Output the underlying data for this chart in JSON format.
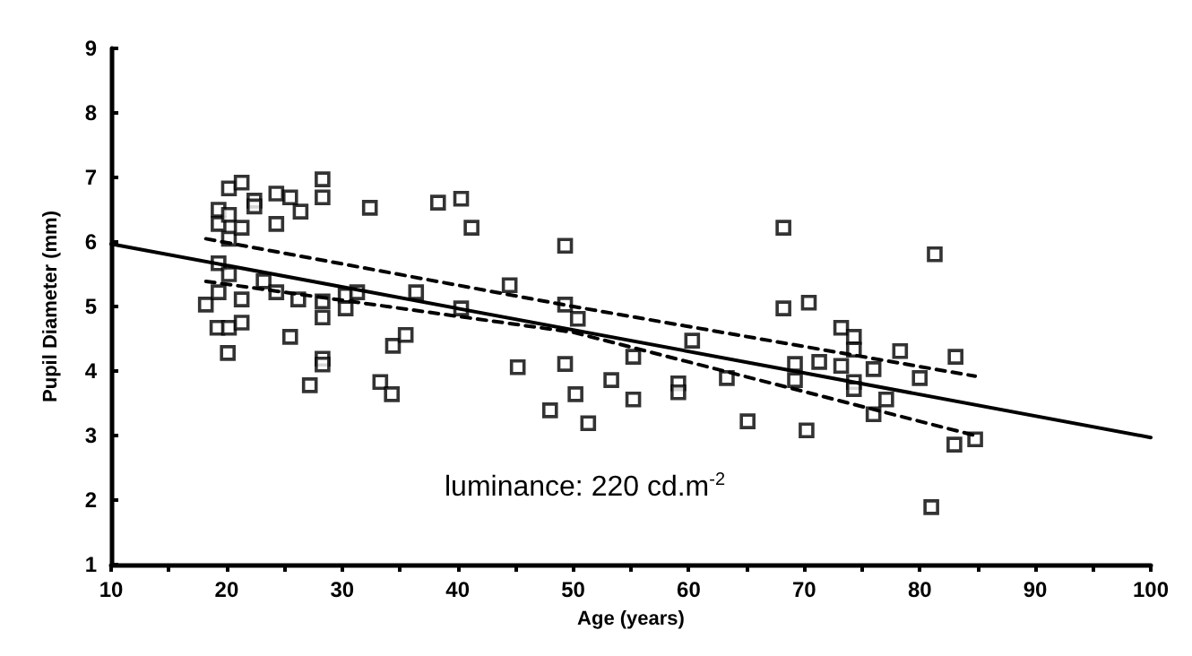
{
  "chart_data": {
    "type": "scatter",
    "xlabel": "Age (years)",
    "ylabel": "Pupil Diameter (mm)",
    "annotations": [
      "luminance: 220 cd.m$^{-2}$"
    ],
    "xlim": [
      10,
      100
    ],
    "ylim": [
      1,
      9
    ],
    "xticks": [
      10,
      {
        "value": 15,
        "label": null
      },
      20,
      {
        "value": 25,
        "label": null
      },
      30,
      {
        "value": 35,
        "label": null
      },
      40,
      {
        "value": 45,
        "label": null
      },
      50,
      {
        "value": 55,
        "label": null
      },
      60,
      {
        "value": 65,
        "label": null
      },
      70,
      {
        "value": 75,
        "label": null
      },
      80,
      {
        "value": 85,
        "label": null
      },
      90,
      {
        "value": 95,
        "label": null
      },
      100
    ],
    "yticks": [
      1,
      2,
      3,
      4,
      5,
      6,
      7,
      8,
      9
    ],
    "grid": false,
    "marker": "square",
    "series": [
      {
        "color": "#000000",
        "x": [
          18.2,
          19.3,
          19.3,
          19.3,
          19.3,
          19.2,
          20.1,
          20.2,
          20.2,
          20.2,
          20.2,
          20.2,
          21.3,
          21.3,
          21.3,
          21.3,
          22.4,
          22.4,
          23.2,
          24.3,
          24.3,
          24.3,
          25.5,
          25.5,
          26.4,
          26.2,
          27.2,
          28.3,
          28.3,
          28.3,
          28.3,
          28.3,
          28.3,
          30.3,
          30.3,
          31.3,
          32.4,
          33.3,
          34.3,
          34.4,
          35.5,
          36.4,
          38.3,
          40.3,
          41.2,
          40.3,
          44.5,
          45.2,
          49.3,
          49.3,
          50.4,
          49.3,
          48.0,
          50.2,
          51.3,
          53.3,
          55.2,
          55.2,
          59.1,
          59.1,
          60.3,
          63.3,
          65.1,
          68.2,
          68.2,
          69.2,
          69.2,
          70.4,
          70.2,
          71.3,
          73.2,
          73.2,
          74.3,
          74.3,
          74.3,
          74.3,
          76.0,
          76.0,
          77.1,
          78.3,
          80.0,
          81.3,
          81.0,
          83.1,
          83.0,
          84.8
        ],
        "values": [
          5.03,
          6.5,
          6.28,
          5.67,
          5.22,
          4.67,
          4.28,
          6.83,
          6.42,
          6.05,
          5.5,
          4.67,
          6.92,
          6.22,
          5.11,
          4.75,
          6.64,
          6.55,
          5.39,
          6.75,
          6.28,
          5.22,
          6.69,
          4.53,
          6.47,
          5.11,
          3.78,
          6.97,
          6.69,
          5.08,
          4.83,
          4.19,
          4.1,
          5.17,
          4.97,
          5.22,
          6.53,
          3.83,
          3.64,
          4.39,
          4.56,
          5.22,
          6.61,
          6.67,
          6.22,
          4.97,
          5.33,
          4.06,
          5.94,
          5.03,
          4.81,
          4.11,
          3.39,
          3.64,
          3.19,
          3.86,
          4.22,
          3.56,
          3.81,
          3.67,
          4.47,
          3.89,
          3.22,
          6.22,
          4.97,
          4.11,
          3.86,
          5.06,
          3.08,
          4.14,
          4.67,
          4.08,
          4.53,
          4.33,
          3.83,
          3.72,
          4.03,
          3.33,
          3.56,
          4.31,
          3.89,
          5.81,
          1.89,
          4.22,
          2.86,
          2.94
        ]
      },
      {
        "type": "line",
        "color": "#000000",
        "marker": "none",
        "line_style": "solid",
        "x": [
          10,
          100
        ],
        "values": [
          5.97,
          2.97
        ]
      },
      {
        "type": "line",
        "color": "#000000",
        "marker": "none",
        "line_style": "dashed",
        "x": [
          18.2,
          50,
          84.8
        ],
        "values": [
          6.05,
          5.0,
          3.92
        ]
      },
      {
        "type": "line",
        "color": "#000000",
        "marker": "none",
        "line_style": "dashed",
        "x": [
          18.2,
          50,
          84.8
        ],
        "values": [
          5.39,
          4.6,
          3.0
        ]
      }
    ]
  }
}
